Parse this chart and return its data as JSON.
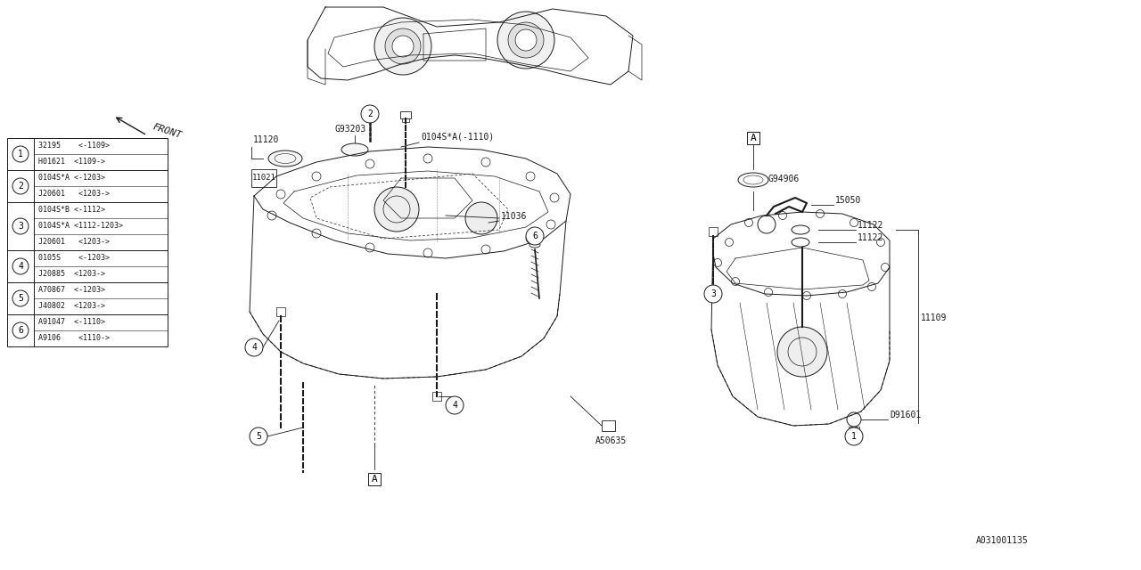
{
  "bg_color": "#ffffff",
  "line_color": "#1a1a1a",
  "fig_w": 12.8,
  "fig_h": 6.4,
  "parts_table": [
    {
      "num": 1,
      "parts": [
        "32195    <-1109>",
        "H01621  <1109->"
      ]
    },
    {
      "num": 2,
      "parts": [
        "0104S*A <-1203>",
        "J20601   <1203->"
      ]
    },
    {
      "num": 3,
      "parts": [
        "0104S*B <-1112>",
        "0104S*A <1112-1203>",
        "J20601   <1203->"
      ]
    },
    {
      "num": 4,
      "parts": [
        "0105S    <-1203>",
        "J20885  <1203->"
      ]
    },
    {
      "num": 5,
      "parts": [
        "A70867  <-1203>",
        "J40802  <1203->"
      ]
    },
    {
      "num": 6,
      "parts": [
        "A91047  <-1110>",
        "A9106    <1110->  "
      ]
    }
  ]
}
